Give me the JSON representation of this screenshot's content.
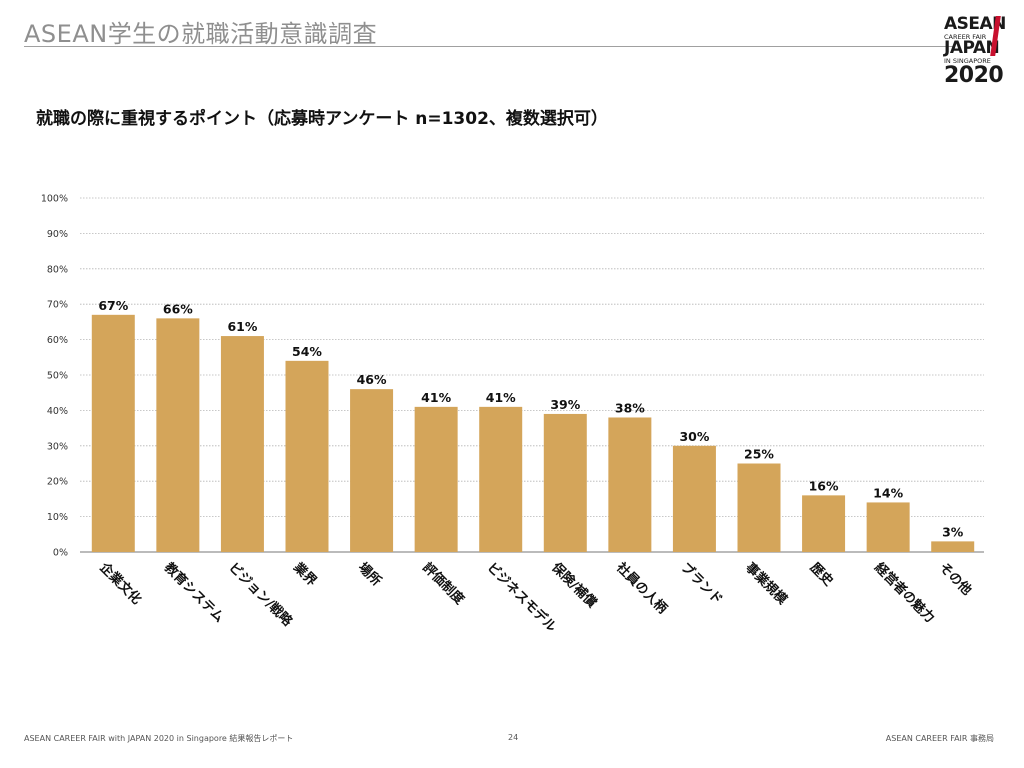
{
  "header": {
    "title": "ASEAN学生の就職活動意識調査"
  },
  "logo": {
    "line1": "ASEAN",
    "line2": "CAREER FAIR",
    "line3": "JAPAN",
    "line4": "IN SINGAPORE",
    "line5": "2020"
  },
  "subtitle": "就職の際に重視するポイント（応募時アンケート n=1302、複数選択可）",
  "footer": {
    "left": "ASEAN CAREER FAIR with JAPAN 2020 in Singapore 結果報告レポート",
    "page": "24",
    "right": "ASEAN CAREER FAIR 事務局"
  },
  "colors": {
    "bar": "#d4a55a",
    "grid": "#b5b5b5",
    "axis": "#777777"
  },
  "chart_data": {
    "type": "bar",
    "title": "就職の際に重視するポイント（応募時アンケート n=1302、複数選択可）",
    "xlabel": "",
    "ylabel": "",
    "ylim": [
      0,
      100
    ],
    "yticks": [
      "0%",
      "10%",
      "20%",
      "30%",
      "40%",
      "50%",
      "60%",
      "70%",
      "80%",
      "90%",
      "100%"
    ],
    "grid": true,
    "categories": [
      "企業文化",
      "教育システム",
      "ビジョン/戦略",
      "業界",
      "場所",
      "評価制度",
      "ビジネスモデル",
      "保険/補償",
      "社員の人柄",
      "ブランド",
      "事業規模",
      "歴史",
      "経営者の魅力",
      "その他"
    ],
    "values": [
      67,
      66,
      61,
      54,
      46,
      41,
      41,
      39,
      38,
      30,
      25,
      16,
      14,
      3
    ],
    "data_labels": [
      "67%",
      "66%",
      "61%",
      "54%",
      "46%",
      "41%",
      "41%",
      "39%",
      "38%",
      "30%",
      "25%",
      "16%",
      "14%",
      "3%"
    ]
  }
}
